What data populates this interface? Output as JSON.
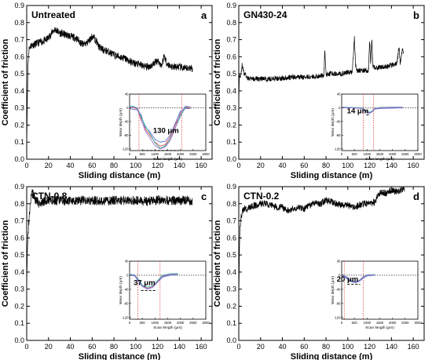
{
  "chart_data": [
    {
      "type": "line",
      "panel_letter": "a",
      "sample_label": "Untreated",
      "xlabel": "Sliding distance (m)",
      "ylabel": "Coefficient of friction",
      "xlim": [
        0,
        170
      ],
      "ylim": [
        0,
        0.9
      ],
      "xticks": [
        "0",
        "20",
        "40",
        "60",
        "80",
        "100",
        "120",
        "140",
        "160"
      ],
      "yticks": [
        "0.0",
        "0.1",
        "0.2",
        "0.3",
        "0.4",
        "0.5",
        "0.6",
        "0.7",
        "0.8",
        "0.9"
      ],
      "noise": 0.022,
      "series": [
        {
          "x": [
            0,
            0.5,
            1,
            1.5,
            2,
            3,
            4,
            5,
            6,
            8,
            10,
            12,
            15,
            18,
            20,
            22,
            24,
            26,
            28,
            30,
            35,
            40,
            45,
            50,
            52,
            55,
            58,
            60,
            62,
            64,
            66,
            70,
            75,
            80,
            85,
            90,
            95,
            100,
            105,
            110,
            115,
            118,
            120,
            122,
            124,
            125,
            126,
            128,
            130,
            135,
            140,
            145,
            150,
            152
          ],
          "y": [
            0.05,
            0.3,
            0.5,
            0.6,
            0.64,
            0.66,
            0.665,
            0.67,
            0.67,
            0.675,
            0.68,
            0.685,
            0.69,
            0.7,
            0.71,
            0.73,
            0.75,
            0.76,
            0.75,
            0.74,
            0.73,
            0.72,
            0.71,
            0.68,
            0.67,
            0.68,
            0.7,
            0.72,
            0.71,
            0.69,
            0.66,
            0.64,
            0.63,
            0.61,
            0.6,
            0.59,
            0.57,
            0.56,
            0.55,
            0.54,
            0.55,
            0.57,
            0.58,
            0.56,
            0.55,
            0.58,
            0.61,
            0.57,
            0.55,
            0.54,
            0.54,
            0.53,
            0.535,
            0.53
          ]
        }
      ],
      "inset": {
        "xlabel": "Scan length (μm)",
        "ylabel": "Wear depth (μm)",
        "xlim": [
          0,
          3000
        ],
        "ylim": [
          -125,
          40
        ],
        "xticks": [
          "0",
          "500",
          "1000",
          "1500",
          "2000",
          "2500",
          "3000"
        ],
        "yticks": [
          "40",
          "0",
          "-40",
          "-80",
          "-120"
        ],
        "annotation": "130 μm",
        "markers": [
          370,
          2050
        ],
        "profiles": [
          {
            "color": "#e0454a",
            "x": [
              0,
              150,
              300,
              450,
              600,
              800,
              1000,
              1200,
              1400,
              1600,
              1800,
              2000,
              2200,
              2400
            ],
            "y": [
              3,
              0,
              -3,
              -35,
              -60,
              -80,
              -100,
              -112,
              -108,
              -85,
              -50,
              -20,
              0,
              0
            ]
          },
          {
            "color": "#5a6fd0",
            "x": [
              0,
              150,
              300,
              450,
              600,
              800,
              1000,
              1200,
              1400,
              1600,
              1800,
              2000,
              2200,
              2400
            ],
            "y": [
              -2,
              -5,
              -6,
              -20,
              -55,
              -70,
              -92,
              -100,
              -98,
              -80,
              -45,
              -10,
              -2,
              -2
            ]
          },
          {
            "color": "#2fb8a8",
            "x": [
              0,
              150,
              300,
              450,
              600,
              800,
              1000,
              1200,
              1400,
              1600,
              1800,
              2000,
              2200,
              2400
            ],
            "y": [
              6,
              4,
              0,
              -25,
              -50,
              -75,
              -102,
              -118,
              -112,
              -92,
              -58,
              -25,
              2,
              3
            ]
          },
          {
            "color": "#a070c8",
            "x": [
              0,
              150,
              300,
              450,
              600,
              800,
              1000,
              1200,
              1400,
              1600,
              1800,
              2000,
              2200,
              2400
            ],
            "y": [
              2,
              2,
              -2,
              -30,
              -65,
              -88,
              -110,
              -120,
              -115,
              -95,
              -60,
              -15,
              5,
              3
            ]
          }
        ]
      }
    },
    {
      "type": "line",
      "panel_letter": "b",
      "sample_label": "GN430-24",
      "xlabel": "Sliding distance (m)",
      "ylabel": "Coefficient of friction",
      "xlim": [
        0,
        170
      ],
      "ylim": [
        0,
        0.9
      ],
      "xticks": [
        "0",
        "20",
        "40",
        "60",
        "80",
        "100",
        "120",
        "140",
        "160"
      ],
      "yticks": [
        "0.0",
        "0.1",
        "0.2",
        "0.3",
        "0.4",
        "0.5",
        "0.6",
        "0.7",
        "0.8",
        "0.9"
      ],
      "noise": 0.015,
      "series": [
        {
          "x": [
            0,
            0.5,
            1,
            2,
            3,
            5,
            8,
            10,
            15,
            20,
            30,
            40,
            50,
            60,
            70,
            78,
            79,
            80,
            81,
            82,
            90,
            95,
            100,
            104,
            105,
            106,
            107,
            108,
            110,
            115,
            119,
            120,
            121,
            122,
            123,
            125,
            130,
            135,
            140,
            145,
            147,
            148,
            149,
            150,
            151
          ],
          "y": [
            0.3,
            0.5,
            0.48,
            0.5,
            0.55,
            0.5,
            0.48,
            0.47,
            0.47,
            0.47,
            0.47,
            0.475,
            0.48,
            0.48,
            0.485,
            0.49,
            0.64,
            0.49,
            0.5,
            0.5,
            0.5,
            0.5,
            0.51,
            0.51,
            0.6,
            0.72,
            0.56,
            0.52,
            0.52,
            0.52,
            0.52,
            0.7,
            0.55,
            0.7,
            0.55,
            0.53,
            0.54,
            0.54,
            0.55,
            0.56,
            0.66,
            0.56,
            0.6,
            0.65,
            0.62
          ]
        }
      ],
      "inset": {
        "xlabel": "Scan length (μm)",
        "ylabel": "Wear depth (μm)",
        "xlim": [
          0,
          3000
        ],
        "ylim": [
          -125,
          40
        ],
        "xticks": [
          "0",
          "500",
          "1000",
          "1500",
          "2000",
          "2500",
          "3000"
        ],
        "yticks": [
          "40",
          "0",
          "-40",
          "-80",
          "-120"
        ],
        "annotation": "14 μm",
        "markers": [
          850,
          1250
        ],
        "profiles": [
          {
            "color": "#e0454a",
            "x": [
              0,
              400,
              800,
              900,
              1000,
              1100,
              1200,
              1300,
              1500,
              2000,
              2400
            ],
            "y": [
              0,
              0,
              0,
              -6,
              -12,
              -14,
              -10,
              -3,
              0,
              0,
              0
            ]
          },
          {
            "color": "#5a6fd0",
            "x": [
              0,
              400,
              800,
              900,
              1000,
              1100,
              1200,
              1300,
              1500,
              2000,
              2400
            ],
            "y": [
              0,
              0,
              -2,
              -8,
              -14,
              -16,
              -12,
              -4,
              -2,
              -1,
              0
            ]
          },
          {
            "color": "#2fb8a8",
            "x": [
              0,
              400,
              800,
              900,
              1000,
              1100,
              1200,
              1300,
              1500,
              2000,
              2400
            ],
            "y": [
              2,
              1,
              0,
              -5,
              -11,
              -13,
              -9,
              -2,
              1,
              2,
              2
            ]
          },
          {
            "color": "#a070c8",
            "x": [
              0,
              400,
              800,
              900,
              1000,
              1100,
              1200,
              1300,
              1500,
              2000,
              2400
            ],
            "y": [
              1,
              0,
              -1,
              -7,
              -13,
              -15,
              -11,
              -3,
              0,
              1,
              1
            ]
          }
        ]
      }
    },
    {
      "type": "line",
      "panel_letter": "c",
      "sample_label": "CTN-0.8",
      "xlabel": "Sliding distance (m)",
      "ylabel": "Coefficient of friction",
      "xlim": [
        0,
        170
      ],
      "ylim": [
        0,
        0.9
      ],
      "xticks": [
        "0",
        "20",
        "40",
        "60",
        "80",
        "100",
        "120",
        "140",
        "160"
      ],
      "yticks": [
        "0.0",
        "0.1",
        "0.2",
        "0.3",
        "0.4",
        "0.5",
        "0.6",
        "0.7",
        "0.8",
        "0.9"
      ],
      "noise": 0.028,
      "series": [
        {
          "x": [
            0,
            0.5,
            1,
            2,
            3,
            4,
            5,
            6,
            7,
            8,
            10,
            12,
            15,
            20,
            30,
            40,
            50,
            60,
            70,
            80,
            90,
            100,
            110,
            120,
            130,
            140,
            150,
            152
          ],
          "y": [
            0.3,
            0.5,
            0.6,
            0.7,
            0.78,
            0.84,
            0.87,
            0.86,
            0.84,
            0.82,
            0.81,
            0.8,
            0.81,
            0.82,
            0.82,
            0.815,
            0.82,
            0.82,
            0.815,
            0.82,
            0.82,
            0.82,
            0.815,
            0.82,
            0.82,
            0.82,
            0.82,
            0.82
          ]
        }
      ],
      "inset": {
        "xlabel": "Scan length (μm)",
        "ylabel": "Wear depth (μm)",
        "xlim": [
          0,
          3000
        ],
        "ylim": [
          -125,
          40
        ],
        "xticks": [
          "0",
          "500",
          "1000",
          "1500",
          "2000",
          "2500",
          "3000"
        ],
        "yticks": [
          "40",
          "0",
          "-40",
          "-80",
          "-120"
        ],
        "annotation": "37 μm",
        "markers": [
          330,
          1200
        ],
        "profiles": [
          {
            "color": "#e0454a",
            "x": [
              0,
              200,
              350,
              500,
              700,
              900,
              1100,
              1300,
              1600,
              1900
            ],
            "y": [
              2,
              0,
              -15,
              -30,
              -37,
              -33,
              -18,
              -2,
              3,
              3
            ]
          },
          {
            "color": "#5a6fd0",
            "x": [
              0,
              200,
              350,
              500,
              700,
              900,
              1100,
              1300,
              1600,
              1900
            ],
            "y": [
              0,
              -2,
              -18,
              -32,
              -39,
              -35,
              -20,
              -5,
              0,
              2
            ]
          },
          {
            "color": "#2fb8a8",
            "x": [
              0,
              200,
              350,
              500,
              700,
              900,
              1100,
              1300,
              1600,
              1900
            ],
            "y": [
              3,
              1,
              -12,
              -28,
              -34,
              -30,
              -15,
              0,
              4,
              5
            ]
          },
          {
            "color": "#a070c8",
            "x": [
              0,
              200,
              350,
              500,
              700,
              900,
              1100,
              1300,
              1600,
              1900
            ],
            "y": [
              1,
              0,
              -16,
              -31,
              -38,
              -34,
              -19,
              -3,
              2,
              3
            ]
          }
        ]
      }
    },
    {
      "type": "line",
      "panel_letter": "d",
      "sample_label": "CTN-0.2",
      "xlabel": "Sliding distance (m)",
      "ylabel": "Coefficient of friction",
      "xlim": [
        0,
        170
      ],
      "ylim": [
        0,
        0.9
      ],
      "xticks": [
        "0",
        "20",
        "40",
        "60",
        "80",
        "100",
        "120",
        "140",
        "160"
      ],
      "yticks": [
        "0.0",
        "0.1",
        "0.2",
        "0.3",
        "0.4",
        "0.5",
        "0.6",
        "0.7",
        "0.8",
        "0.9"
      ],
      "noise": 0.02,
      "series": [
        {
          "x": [
            0,
            0.5,
            1,
            2,
            3,
            5,
            8,
            10,
            15,
            20,
            25,
            30,
            35,
            40,
            45,
            50,
            55,
            60,
            65,
            70,
            75,
            80,
            85,
            90,
            95,
            100,
            105,
            110,
            115,
            120,
            125,
            128,
            130,
            135,
            140,
            145,
            150,
            152
          ],
          "y": [
            0.2,
            0.5,
            0.65,
            0.72,
            0.75,
            0.77,
            0.77,
            0.78,
            0.79,
            0.8,
            0.8,
            0.79,
            0.78,
            0.78,
            0.76,
            0.77,
            0.78,
            0.77,
            0.79,
            0.81,
            0.8,
            0.82,
            0.81,
            0.8,
            0.79,
            0.79,
            0.78,
            0.79,
            0.8,
            0.8,
            0.81,
            0.85,
            0.87,
            0.86,
            0.88,
            0.87,
            0.88,
            0.89
          ]
        }
      ],
      "inset": {
        "xlabel": "Scan length (μm)",
        "ylabel": "Wear depth (μm)",
        "xlim": [
          0,
          3000
        ],
        "ylim": [
          -125,
          40
        ],
        "xticks": [
          "0",
          "500",
          "1000",
          "1500",
          "2000",
          "2500",
          "3000"
        ],
        "yticks": [
          "40",
          "0",
          "-40",
          "-80",
          "-120"
        ],
        "annotation": "20 μm",
        "markers": [
          100,
          850
        ],
        "profiles": [
          {
            "color": "#e0454a",
            "x": [
              0,
              100,
              250,
              400,
              550,
              700,
              850,
              1000,
              1300
            ],
            "y": [
              0,
              -2,
              -10,
              -18,
              -20,
              -16,
              -6,
              0,
              1
            ]
          },
          {
            "color": "#5a6fd0",
            "x": [
              0,
              100,
              250,
              400,
              550,
              700,
              850,
              1000,
              1300
            ],
            "y": [
              -2,
              -4,
              -12,
              -19,
              -21,
              -17,
              -8,
              -2,
              0
            ]
          },
          {
            "color": "#2fb8a8",
            "x": [
              0,
              100,
              250,
              400,
              550,
              700,
              850,
              1000,
              1300
            ],
            "y": [
              2,
              0,
              -8,
              -16,
              -18,
              -14,
              -4,
              1,
              2
            ]
          },
          {
            "color": "#a070c8",
            "x": [
              0,
              100,
              250,
              400,
              550,
              700,
              850,
              1000,
              1300
            ],
            "y": [
              1,
              -1,
              -9,
              -17,
              -19,
              -15,
              -5,
              0,
              1
            ]
          }
        ]
      }
    }
  ]
}
